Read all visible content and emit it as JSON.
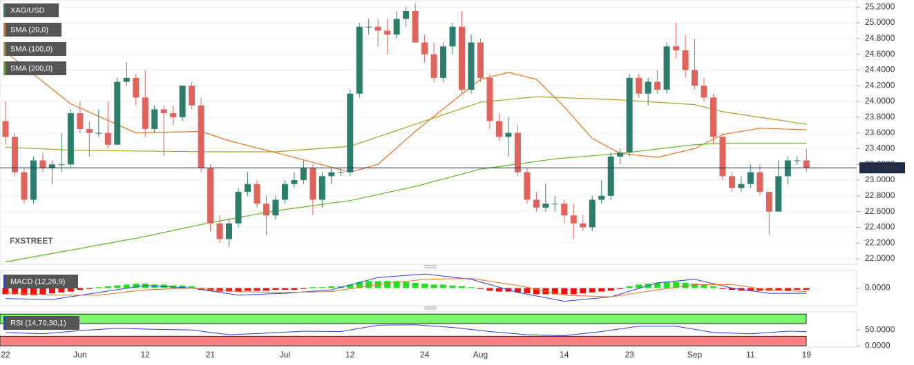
{
  "chart_data": [
    {
      "type": "candlestick",
      "title": "XAG/USD",
      "categories": [
        "22",
        null,
        null,
        null,
        null,
        null,
        null,
        null,
        "Jun",
        null,
        null,
        null,
        null,
        null,
        null,
        "12",
        null,
        null,
        null,
        null,
        null,
        null,
        "21",
        null,
        null,
        null,
        null,
        null,
        null,
        null,
        "Jul",
        null,
        null,
        null,
        null,
        null,
        null,
        "12",
        null,
        null,
        null,
        null,
        null,
        null,
        null,
        "24",
        null,
        null,
        null,
        null,
        null,
        "Aug",
        null,
        null,
        null,
        null,
        null,
        null,
        null,
        null,
        "14",
        null,
        null,
        null,
        null,
        null,
        null,
        "23",
        null,
        null,
        null,
        null,
        null,
        null,
        "Sep",
        null,
        null,
        null,
        null,
        null,
        "11",
        null,
        null,
        null,
        null,
        null,
        "19"
      ],
      "candles": {
        "open": [
          23.75,
          23.55,
          23.1,
          22.75,
          23.25,
          23.15,
          23.2,
          23.2,
          23.85,
          23.65,
          23.6,
          23.6,
          23.45,
          24.25,
          24.3,
          24.05,
          23.65,
          23.9,
          23.85,
          23.8,
          24.2,
          23.95,
          23.15,
          22.45,
          22.25,
          22.45,
          22.85,
          22.95,
          22.7,
          22.55,
          22.75,
          22.95,
          23.0,
          23.15,
          22.75,
          23.05,
          23.1,
          23.1,
          24.1,
          24.95,
          24.95,
          24.9,
          24.85,
          25.05,
          25.15,
          24.75,
          24.6,
          24.3,
          24.7,
          24.95,
          24.15,
          24.75,
          24.3,
          23.75,
          23.55,
          23.6,
          23.1,
          22.75,
          22.65,
          22.7,
          22.7,
          22.55,
          22.45,
          22.4,
          22.75,
          22.8,
          23.3,
          23.35,
          24.3,
          24.1,
          24.25,
          24.15,
          24.7,
          24.65,
          24.4,
          24.2,
          24.05,
          23.55,
          23.05,
          22.9,
          22.95,
          23.1,
          22.85,
          22.6,
          23.05,
          23.25,
          23.25
        ],
        "high": [
          24.0,
          23.6,
          23.15,
          23.3,
          23.35,
          23.25,
          23.6,
          23.9,
          24.0,
          23.75,
          23.9,
          24.0,
          24.3,
          24.5,
          24.35,
          24.4,
          23.95,
          23.95,
          23.95,
          24.2,
          24.25,
          24.05,
          23.2,
          22.55,
          22.5,
          22.9,
          23.1,
          23.0,
          22.8,
          22.8,
          23.0,
          23.1,
          23.25,
          23.2,
          23.1,
          23.15,
          23.15,
          24.15,
          25.0,
          25.05,
          25.05,
          25.05,
          25.15,
          25.2,
          25.25,
          24.85,
          24.75,
          24.75,
          25.0,
          25.15,
          24.85,
          24.8,
          24.35,
          23.85,
          23.8,
          23.7,
          23.15,
          22.85,
          22.95,
          22.8,
          22.75,
          22.7,
          22.55,
          22.8,
          23.0,
          23.35,
          23.4,
          24.35,
          24.35,
          24.3,
          24.4,
          24.75,
          25.0,
          24.85,
          24.8,
          24.3,
          24.1,
          23.6,
          23.1,
          23.05,
          23.2,
          23.2,
          22.85,
          23.25,
          23.3,
          23.3,
          23.4
        ],
        "low": [
          23.45,
          23.05,
          22.7,
          22.7,
          23.1,
          22.95,
          23.1,
          23.15,
          23.6,
          23.3,
          23.55,
          23.4,
          23.45,
          24.2,
          23.95,
          23.55,
          23.6,
          23.3,
          23.7,
          23.75,
          23.9,
          23.1,
          22.35,
          22.2,
          22.15,
          22.4,
          22.8,
          22.65,
          22.3,
          22.5,
          22.7,
          22.9,
          22.95,
          22.55,
          22.65,
          22.95,
          23.05,
          23.05,
          24.05,
          24.85,
          24.7,
          24.6,
          24.8,
          24.95,
          24.75,
          24.5,
          24.25,
          24.25,
          24.6,
          24.1,
          24.1,
          24.25,
          23.65,
          23.5,
          23.3,
          23.05,
          22.7,
          22.6,
          22.6,
          22.6,
          22.45,
          22.25,
          22.35,
          22.35,
          22.7,
          22.75,
          23.2,
          23.3,
          24.05,
          23.95,
          24.1,
          24.1,
          24.55,
          24.3,
          24.15,
          24.0,
          23.45,
          23.0,
          22.85,
          22.85,
          22.9,
          22.8,
          22.3,
          22.6,
          22.95,
          23.2,
          23.1
        ],
        "close": [
          23.55,
          23.1,
          22.75,
          23.25,
          23.15,
          23.2,
          23.2,
          23.85,
          23.65,
          23.6,
          23.6,
          23.45,
          24.25,
          24.3,
          24.05,
          23.65,
          23.9,
          23.85,
          23.8,
          24.2,
          23.95,
          23.15,
          22.45,
          22.25,
          22.45,
          22.85,
          22.95,
          22.7,
          22.55,
          22.75,
          22.95,
          23.0,
          23.15,
          22.75,
          23.05,
          23.1,
          23.1,
          24.1,
          24.95,
          24.95,
          24.9,
          24.85,
          25.05,
          25.15,
          24.75,
          24.6,
          24.3,
          24.7,
          24.95,
          24.15,
          24.75,
          24.3,
          23.75,
          23.55,
          23.6,
          23.1,
          22.75,
          22.65,
          22.7,
          22.7,
          22.55,
          22.45,
          22.4,
          22.75,
          22.8,
          23.3,
          23.35,
          24.3,
          24.1,
          24.25,
          24.15,
          24.7,
          24.65,
          24.4,
          24.2,
          24.05,
          23.55,
          23.05,
          22.9,
          22.95,
          23.1,
          22.85,
          22.6,
          23.05,
          23.25,
          23.25,
          23.156
        ]
      },
      "up_color": "#2c7d6b",
      "down_color": "#e0635c",
      "series": [
        {
          "name": "SMA (20,0)",
          "color": "#e8731c",
          "x": [
            0,
            7,
            14,
            21,
            24,
            30,
            37,
            40,
            44,
            48,
            51,
            54,
            57,
            60,
            63,
            66,
            70,
            74,
            77,
            81,
            86
          ],
          "values": [
            24.63,
            23.97,
            23.6,
            23.62,
            23.5,
            23.32,
            23.1,
            23.2,
            23.62,
            24.0,
            24.28,
            24.37,
            24.28,
            23.93,
            23.53,
            23.34,
            23.29,
            23.4,
            23.58,
            23.66,
            23.64
          ]
        },
        {
          "name": "SMA (100,0)",
          "color": "#a8a023",
          "x": [
            0,
            7,
            22,
            29,
            37,
            44,
            51,
            57,
            66,
            74,
            77,
            86
          ],
          "values": [
            23.42,
            23.38,
            23.36,
            23.36,
            23.43,
            23.71,
            23.99,
            24.06,
            24.02,
            23.96,
            23.87,
            23.71
          ]
        },
        {
          "name": "SMA (200,0)",
          "color": "#5fb31f",
          "x": [
            0,
            14,
            22,
            29,
            37,
            44,
            51,
            59,
            66,
            74,
            77,
            86
          ],
          "values": [
            21.96,
            22.26,
            22.46,
            22.61,
            22.74,
            22.92,
            23.14,
            23.27,
            23.34,
            23.45,
            23.47,
            23.47
          ]
        }
      ],
      "last_price": {
        "value": 23.156,
        "label": "23.15600"
      },
      "ylim": [
        21.93,
        25.29
      ],
      "yticks": [
        {
          "value": 22.0,
          "label": "22.0000"
        },
        {
          "value": 22.2,
          "label": "22.2000"
        },
        {
          "value": 22.4,
          "label": "22.4000"
        },
        {
          "value": 22.6,
          "label": "22.6000"
        },
        {
          "value": 22.8,
          "label": "22.8000"
        },
        {
          "value": 23.0,
          "label": "23.0000"
        },
        {
          "value": 23.2,
          "label": "23.2000"
        },
        {
          "value": 23.4,
          "label": "23.4000"
        },
        {
          "value": 23.6,
          "label": "23.6000"
        },
        {
          "value": 23.8,
          "label": "23.8000"
        },
        {
          "value": 24.0,
          "label": "24.0000"
        },
        {
          "value": 24.2,
          "label": "24.2000"
        },
        {
          "value": 24.4,
          "label": "24.4000"
        },
        {
          "value": 24.6,
          "label": "24.6000"
        },
        {
          "value": 24.8,
          "label": "24.8000"
        },
        {
          "value": 25.0,
          "label": "25.0000"
        },
        {
          "value": 25.2,
          "label": "25.2000"
        }
      ],
      "grid": true,
      "watermark": "FXSTREET"
    },
    {
      "type": "macd",
      "title": "MACD (12,26,9)",
      "histogram": [
        -0.07,
        -0.07,
        -0.08,
        -0.08,
        -0.07,
        -0.06,
        -0.05,
        -0.04,
        -0.02,
        -0.01,
        0.01,
        0.02,
        0.03,
        0.04,
        0.05,
        0.05,
        0.04,
        0.04,
        0.03,
        0.03,
        0.02,
        -0.02,
        -0.03,
        -0.04,
        -0.04,
        -0.04,
        -0.03,
        -0.03,
        -0.03,
        -0.02,
        -0.02,
        -0.02,
        -0.01,
        0.01,
        0.01,
        0.02,
        0.02,
        0.04,
        0.07,
        0.08,
        0.08,
        0.08,
        0.08,
        0.07,
        0.06,
        0.05,
        0.04,
        0.04,
        0.03,
        0.02,
        0.01,
        -0.01,
        -0.03,
        -0.04,
        -0.04,
        -0.05,
        -0.06,
        -0.07,
        -0.07,
        -0.07,
        -0.07,
        -0.07,
        -0.06,
        -0.05,
        -0.04,
        -0.03,
        -0.01,
        0.02,
        0.04,
        0.05,
        0.06,
        0.07,
        0.07,
        0.06,
        0.05,
        0.04,
        0.02,
        -0.01,
        -0.02,
        -0.03,
        -0.03,
        -0.03,
        -0.03,
        -0.03,
        -0.03,
        -0.02,
        -0.02
      ],
      "up_color": "#22e022",
      "down_color": "#ee1111",
      "series": [
        {
          "color": "#2a3bd8",
          "x": [
            0,
            5,
            10,
            15,
            20,
            25,
            30,
            35,
            40,
            45,
            50,
            55,
            60,
            65,
            70,
            74,
            78,
            82,
            86
          ],
          "values": [
            -0.12,
            -0.13,
            -0.05,
            0.03,
            0.0,
            -0.08,
            -0.06,
            -0.02,
            0.12,
            0.16,
            0.1,
            -0.05,
            -0.15,
            -0.1,
            0.06,
            0.1,
            0.0,
            -0.06,
            -0.06
          ]
        },
        {
          "color": "#e8731c",
          "x": [
            0,
            5,
            10,
            15,
            20,
            25,
            30,
            35,
            40,
            45,
            50,
            55,
            60,
            65,
            70,
            74,
            78,
            82,
            86
          ],
          "values": [
            -0.05,
            -0.08,
            -0.08,
            -0.02,
            0.0,
            -0.04,
            -0.05,
            -0.04,
            0.04,
            0.1,
            0.11,
            0.03,
            -0.08,
            -0.1,
            -0.02,
            0.04,
            0.04,
            -0.02,
            -0.04
          ]
        }
      ],
      "ylim": [
        -0.2,
        0.2
      ],
      "yticks": [
        {
          "value": 0,
          "label": "0.0000"
        }
      ]
    },
    {
      "type": "rsi",
      "title": "RSI (14,70,30,1)",
      "overbought": [
        70,
        100
      ],
      "oversold": [
        0,
        30
      ],
      "overbought_color": "#7cf56e",
      "oversold_color": "#f88282",
      "series": [
        {
          "color": "#2a3bd8",
          "x": [
            0,
            4,
            8,
            12,
            16,
            20,
            24,
            28,
            32,
            36,
            40,
            44,
            48,
            52,
            56,
            60,
            64,
            68,
            72,
            76,
            80,
            84,
            86
          ],
          "values": [
            42,
            38,
            48,
            55,
            52,
            50,
            35,
            40,
            46,
            45,
            65,
            66,
            58,
            45,
            35,
            32,
            45,
            62,
            62,
            42,
            38,
            46,
            45
          ]
        }
      ],
      "ylim": [
        -4,
        107
      ],
      "yticks": [
        {
          "value": 0,
          "label": "0.0000"
        },
        {
          "value": 50,
          "label": "50.0000"
        }
      ]
    }
  ]
}
